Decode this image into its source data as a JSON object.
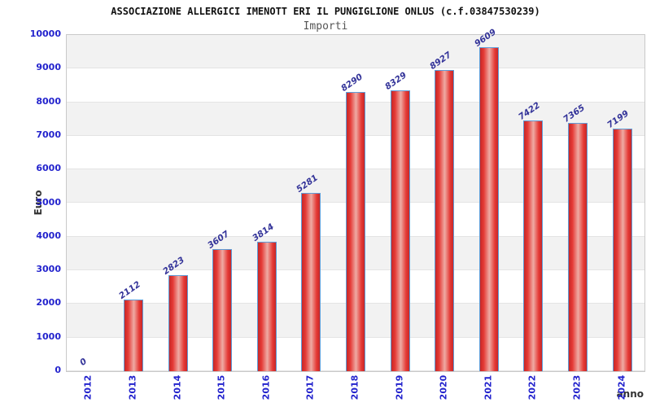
{
  "title": "ASSOCIAZIONE ALLERGICI IMENOTT ERI IL PUNGIGLIONE ONLUS (c.f.03847530239)",
  "subtitle": "Importi",
  "chart_data": {
    "type": "bar",
    "title": "ASSOCIAZIONE ALLERGICI IMENOTT ERI IL PUNGIGLIONE ONLUS (c.f.03847530239)",
    "subtitle": "Importi",
    "xlabel": "anno",
    "ylabel": "Euro",
    "categories": [
      "2012",
      "2013",
      "2014",
      "2015",
      "2016",
      "2017",
      "2018",
      "2019",
      "2020",
      "2021",
      "2022",
      "2023",
      "2024"
    ],
    "values": [
      0,
      2112,
      2823,
      3607,
      3814,
      5281,
      8290,
      8329,
      8927,
      9609,
      7422,
      7365,
      7199
    ],
    "ylim": [
      0,
      10000
    ],
    "ytick_step": 1000,
    "yticks": [
      0,
      1000,
      2000,
      3000,
      4000,
      5000,
      6000,
      7000,
      8000,
      9000,
      10000
    ],
    "grid": "horizontal alternating bands",
    "legend_position": "none",
    "bar_value_labels": true
  },
  "colors": {
    "tick_label": "#2323cd",
    "value_label": "#333399",
    "bar_border": "#5f9dd8",
    "bar_edge": "#c62828",
    "bar_mid": "#e53935",
    "bar_highlight": "#eeaba4",
    "band_gray": "#f2f2f2",
    "band_white": "#ffffff",
    "grid_line": "#e4e4e4",
    "plot_border": "#c9c9c9",
    "title_color": "#111111",
    "subtitle_color": "#555555",
    "axis_title_color": "#333333"
  }
}
